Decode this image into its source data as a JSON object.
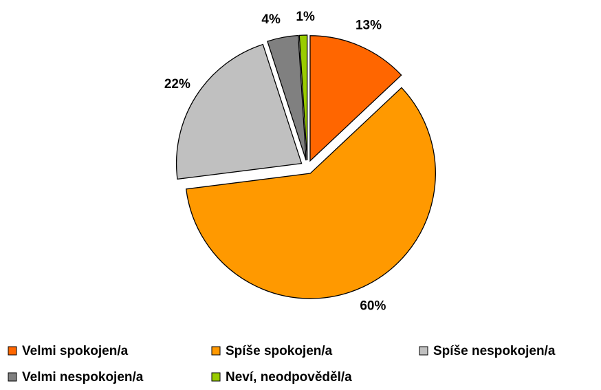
{
  "chart_data": {
    "type": "pie",
    "categories": [
      "Velmi spokojen/a",
      "Spíše spokojen/a",
      "Spíše nespokojen/a",
      "Velmi nespokojen/a",
      "Neví, neodpověděl/a"
    ],
    "values": [
      13,
      60,
      22,
      4,
      1
    ],
    "value_labels": [
      "13%",
      "60%",
      "22%",
      "4%",
      "1%"
    ],
    "colors": [
      "#ff6600",
      "#ff9900",
      "#c0c0c0",
      "#808080",
      "#99cc00"
    ]
  }
}
